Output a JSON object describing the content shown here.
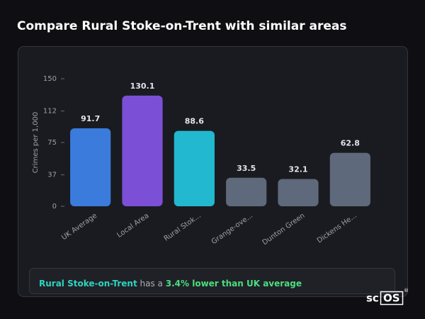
{
  "title": "Compare Rural Stoke-on-Trent with similar areas",
  "chart_data": {
    "type": "bar",
    "ylabel": "Crimes per 1,000",
    "categories": [
      "UK Average",
      "Local Area",
      "Rural Stok...",
      "Grange-ove...",
      "Dunton Green",
      "Dickens He..."
    ],
    "values": [
      91.7,
      130.1,
      88.6,
      33.5,
      32.1,
      62.8
    ],
    "colors": [
      "#3a7bdc",
      "#7b4fd6",
      "#22b8cf",
      "#5e697b",
      "#5e697b",
      "#5e697b"
    ],
    "ylim": [
      0,
      150
    ],
    "yticks": [
      0,
      37,
      75,
      112,
      150
    ],
    "grid": false
  },
  "insight": {
    "area": "Rural Stoke-on-Trent",
    "connector": "has a",
    "highlight": "3.4% lower than UK average"
  },
  "brand": {
    "prefix": "sc",
    "suffix": "OS",
    "mark": "®"
  }
}
